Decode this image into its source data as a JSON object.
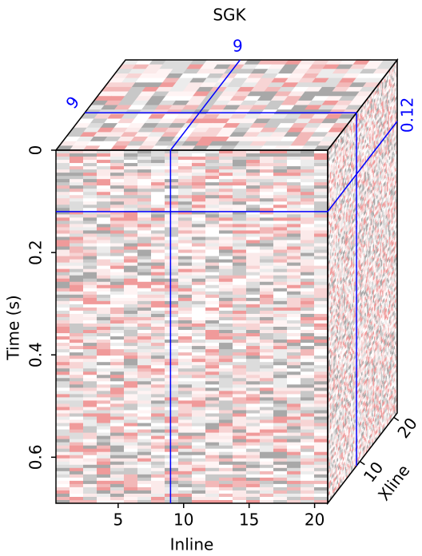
{
  "chart_data": {
    "type": "cube",
    "title": "SGK",
    "xlabel": "Inline",
    "ylabel": "Time (s)",
    "zlabel": "Xline",
    "xlim": [
      0.25,
      21
    ],
    "xticks": [
      5,
      10,
      15,
      20
    ],
    "ylim": [
      0,
      0.69
    ],
    "yticks": [
      0,
      0.2,
      0.4,
      0.6
    ],
    "zlim": [
      0.5,
      21
    ],
    "zticks": [
      10,
      20
    ],
    "slices": {
      "inline": 9,
      "time": 0.12,
      "xline": 9
    },
    "slice_color": "#0000ff"
  }
}
